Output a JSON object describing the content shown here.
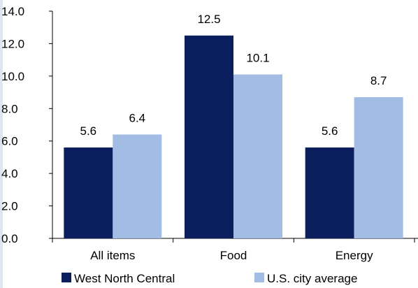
{
  "chart_data": {
    "type": "bar",
    "categories": [
      "All items",
      "Food",
      "Energy"
    ],
    "series": [
      {
        "name": "West North Central",
        "color": "#0b1f5e",
        "values": [
          5.6,
          12.5,
          5.6
        ]
      },
      {
        "name": "U.S. city average",
        "color": "#a3bce4",
        "values": [
          6.4,
          10.1,
          8.7
        ]
      }
    ],
    "ylim": [
      0,
      14
    ],
    "ytick_step": 2,
    "ytick_labels": [
      "0.0",
      "2.0",
      "4.0",
      "6.0",
      "8.0",
      "10.0",
      "12.0",
      "14.0"
    ],
    "xlabel": "",
    "ylabel": "",
    "title": "",
    "grid": false,
    "legend_position": "bottom"
  }
}
